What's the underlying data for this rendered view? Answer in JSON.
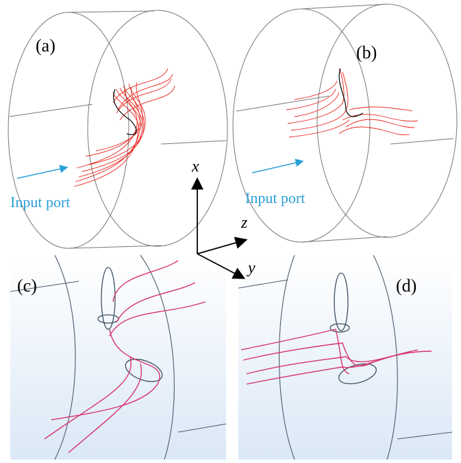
{
  "panels": [
    {
      "label": "(a)",
      "annotation": "Input port"
    },
    {
      "label": "(b)",
      "annotation": "Input port"
    },
    {
      "label": "(c)"
    },
    {
      "label": "(d)"
    }
  ],
  "axes": {
    "x": "x",
    "z": "z",
    "y": "y"
  }
}
